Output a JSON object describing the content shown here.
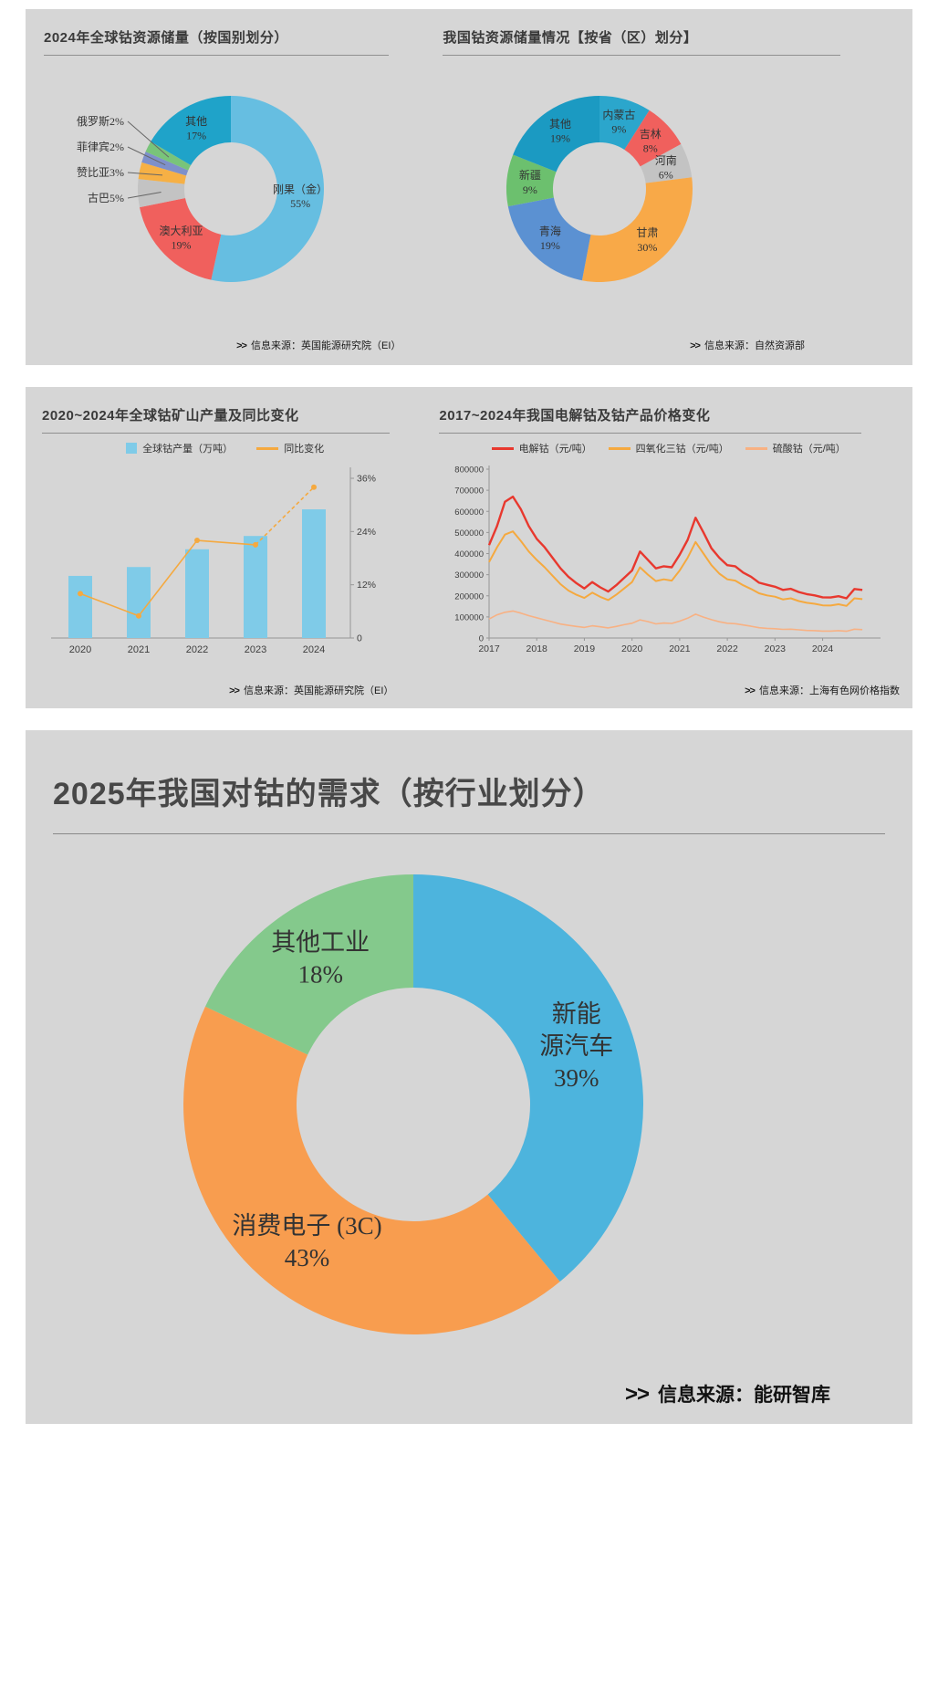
{
  "page": {
    "background": "#ffffff",
    "panel_background": "#d6d6d6"
  },
  "chart_data": [
    {
      "id": "global-cobalt-reserves-2024",
      "type": "pie",
      "title": "2024年全球钴资源储量（按国别划分）",
      "source_prefix": ">>",
      "source": "信息来源：英国能源研究院（EI）",
      "legend_position": "none",
      "slices": [
        {
          "label": "刚果（金）",
          "value": 55,
          "pct": "55%",
          "color": "#66bee1",
          "pos": "in",
          "lines": [
            "刚果（金）",
            "55%"
          ]
        },
        {
          "label": "澳大利亚",
          "value": 19,
          "pct": "19%",
          "color": "#f0605d",
          "pos": "in",
          "lines": [
            "澳大利亚",
            "19%"
          ]
        },
        {
          "label": "古巴",
          "value": 5,
          "pct": "5%",
          "color": "#c3c3c3",
          "pos": "left",
          "lines": [
            "古巴5%"
          ]
        },
        {
          "label": "赞比亚",
          "value": 3,
          "pct": "3%",
          "color": "#f6b045",
          "pos": "left",
          "lines": [
            "赞比亚3%"
          ]
        },
        {
          "label": "菲律宾",
          "value": 2,
          "pct": "2%",
          "color": "#7e90ca",
          "pos": "left",
          "lines": [
            "菲律宾2%"
          ]
        },
        {
          "label": "俄罗斯",
          "value": 2,
          "pct": "2%",
          "color": "#79c47a",
          "pos": "left",
          "lines": [
            "俄罗斯2%"
          ]
        },
        {
          "label": "其他",
          "value": 17,
          "pct": "17%",
          "color": "#1fa3c9",
          "pos": "in",
          "lines": [
            "其他",
            "17%"
          ]
        }
      ]
    },
    {
      "id": "china-cobalt-reserves-by-province",
      "type": "pie",
      "title": "我国钴资源储量情况【按省（区）划分】",
      "source_prefix": ">>",
      "source": "信息来源：自然资源部",
      "legend_position": "none",
      "slices": [
        {
          "label": "内蒙古",
          "value": 9,
          "pct": "9%",
          "color": "#2ba6cc",
          "pos": "in",
          "lines": [
            "内蒙古",
            "9%"
          ]
        },
        {
          "label": "吉林",
          "value": 8,
          "pct": "8%",
          "color": "#f0605d",
          "pos": "in",
          "lines": [
            "吉林",
            "8%"
          ]
        },
        {
          "label": "河南",
          "value": 6,
          "pct": "6%",
          "color": "#c3c3c3",
          "pos": "in",
          "lines": [
            "河南",
            "6%"
          ]
        },
        {
          "label": "甘肃",
          "value": 30,
          "pct": "30%",
          "color": "#f8a948",
          "pos": "in",
          "lines": [
            "甘肃",
            "30%"
          ]
        },
        {
          "label": "青海",
          "value": 19,
          "pct": "19%",
          "color": "#5b91d2",
          "pos": "in",
          "lines": [
            "青海",
            "19%"
          ]
        },
        {
          "label": "新疆",
          "value": 9,
          "pct": "9%",
          "color": "#6cc06e",
          "pos": "in",
          "lines": [
            "新疆",
            "9%"
          ]
        },
        {
          "label": "其他",
          "value": 19,
          "pct": "19%",
          "color": "#1b9ac2",
          "pos": "in",
          "lines": [
            "其他",
            "19%"
          ]
        }
      ]
    },
    {
      "id": "global-cobalt-mine-production-2020-2024",
      "type": "bar",
      "title": "2020~2024年全球钴矿山产量及同比变化",
      "source_prefix": ">>",
      "source": "信息来源：英国能源研究院（EI）",
      "categories": [
        "2020",
        "2021",
        "2022",
        "2023",
        "2024"
      ],
      "bar_series": {
        "name": "全球钴产量（万吨）",
        "values": [
          14,
          16,
          20,
          23,
          29
        ],
        "color": "#7fcbe8"
      },
      "line_series": {
        "name": "同比变化",
        "values": [
          10,
          5,
          22,
          21,
          34
        ],
        "color": "#f5a93f"
      },
      "ylim": [
        0,
        36
      ],
      "y2_ticks": [
        {
          "v": 0,
          "label": "0"
        },
        {
          "v": 12,
          "label": "12%"
        },
        {
          "v": 24,
          "label": "24%"
        },
        {
          "v": 36,
          "label": "36%"
        }
      ]
    },
    {
      "id": "china-cobalt-product-prices-2017-2024",
      "type": "line",
      "title": "2017~2024年我国电解钴及钴产品价格变化",
      "source_prefix": ">>",
      "source": "信息来源：上海有色网价格指数",
      "x_start": 2017,
      "x_step": 0.1666667,
      "xlim": [
        2017,
        2025.1
      ],
      "ylim": [
        0,
        800000
      ],
      "y_ticks": [
        800000,
        700000,
        600000,
        500000,
        400000,
        300000,
        200000,
        100000,
        0
      ],
      "x_ticks": [
        2017,
        2018,
        2019,
        2020,
        2021,
        2022,
        2023,
        2024
      ],
      "grid": false,
      "series": [
        {
          "name": "电解钴（元/吨）",
          "color": "#e8382e",
          "width": 2.4,
          "values": [
            440000,
            530000,
            645000,
            670000,
            610000,
            530000,
            470000,
            430000,
            380000,
            330000,
            290000,
            260000,
            235000,
            265000,
            240000,
            220000,
            250000,
            285000,
            320000,
            410000,
            370000,
            330000,
            340000,
            335000,
            395000,
            465000,
            570000,
            500000,
            425000,
            380000,
            345000,
            340000,
            310000,
            290000,
            262000,
            252000,
            243000,
            228000,
            233000,
            218000,
            208000,
            202000,
            193000,
            192000,
            198000,
            188000,
            232000,
            228000
          ]
        },
        {
          "name": "四氧化三钴（元/吨）",
          "color": "#f5a93f",
          "width": 2,
          "values": [
            360000,
            430000,
            490000,
            505000,
            460000,
            410000,
            370000,
            335000,
            295000,
            255000,
            225000,
            205000,
            190000,
            215000,
            195000,
            180000,
            205000,
            235000,
            265000,
            335000,
            300000,
            270000,
            278000,
            272000,
            320000,
            380000,
            455000,
            400000,
            345000,
            305000,
            278000,
            272000,
            250000,
            232000,
            212000,
            202000,
            196000,
            183000,
            188000,
            175000,
            167000,
            162000,
            155000,
            154000,
            160000,
            152000,
            188000,
            184000
          ]
        },
        {
          "name": "硫酸钴（元/吨）",
          "color": "#f8b183",
          "width": 1.6,
          "values": [
            90000,
            110000,
            122000,
            128000,
            118000,
            106000,
            96000,
            86000,
            76000,
            66000,
            60000,
            55000,
            50000,
            58000,
            53000,
            48000,
            55000,
            63000,
            70000,
            86000,
            78000,
            67000,
            71000,
            69000,
            80000,
            94000,
            113000,
            99000,
            87000,
            77000,
            70000,
            68000,
            62000,
            56000,
            49000,
            46000,
            44000,
            41000,
            42000,
            39000,
            36000,
            35000,
            33000,
            33000,
            35000,
            32000,
            42000,
            40000
          ]
        }
      ]
    },
    {
      "id": "china-cobalt-demand-2025-by-industry",
      "type": "pie",
      "title": "2025年我国对钴的需求（按行业划分）",
      "source_prefix": ">>",
      "source": "信息来源：能研智库",
      "slices": [
        {
          "label": "新能源汽车",
          "value": 39,
          "pct": "39%",
          "color": "#4db4dd",
          "pos": "in",
          "lines": [
            "新能",
            "源汽车",
            "39%"
          ]
        },
        {
          "label": "消费电子 (3C)",
          "value": 43,
          "pct": "43%",
          "color": "#f89d4f",
          "pos": "in",
          "lines": [
            "消费电子 (3C)",
            "43%"
          ]
        },
        {
          "label": "其他工业",
          "value": 18,
          "pct": "18%",
          "color": "#84c98c",
          "pos": "in",
          "lines": [
            "其他工业",
            "18%"
          ]
        }
      ]
    }
  ]
}
